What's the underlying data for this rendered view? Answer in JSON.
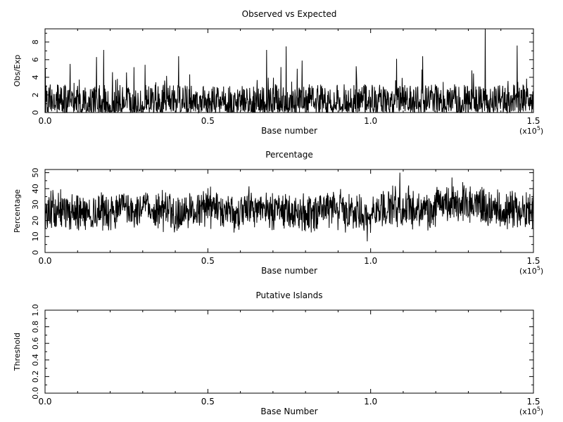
{
  "chart_data": [
    {
      "type": "line",
      "title": "Observed vs Expected",
      "xlabel": "Base number",
      "ylabel": "Obs/Exp",
      "x_multiplier_base": "(x10",
      "x_multiplier_exp": "5",
      "x_multiplier_close": ")",
      "xlim": [
        0,
        150000
      ],
      "ylim": [
        0,
        9.5
      ],
      "x_ticks": [
        0,
        50000,
        100000,
        150000
      ],
      "x_tick_labels": [
        "0.0",
        "0.5",
        "1.0",
        "1.5"
      ],
      "y_ticks": [
        0,
        2,
        4,
        6,
        8
      ],
      "y_tick_labels": [
        "0",
        "2",
        "4",
        "6",
        "8"
      ],
      "series": [
        {
          "description": "dense noisy trace, baseline mostly 0-3 with spikes",
          "color": "#000000",
          "generator": {
            "n": 1500,
            "kind": "obsexp",
            "seed": 7
          },
          "peaks": [
            [
              15800,
              6.3
            ],
            [
              18000,
              7.1
            ],
            [
              41000,
              6.4
            ],
            [
              68000,
              7.1
            ],
            [
              74000,
              7.5
            ],
            [
              79000,
              5.9
            ],
            [
              108000,
              6.1
            ],
            [
              116000,
              6.4
            ],
            [
              135200,
              9.5
            ],
            [
              145000,
              7.6
            ]
          ]
        }
      ]
    },
    {
      "type": "line",
      "title": "Percentage",
      "xlabel": "Base number",
      "ylabel": "Percentage",
      "x_multiplier_base": "(x10",
      "x_multiplier_exp": "5",
      "x_multiplier_close": ")",
      "xlim": [
        0,
        150000
      ],
      "ylim": [
        0,
        52
      ],
      "x_ticks": [
        0,
        50000,
        100000,
        150000
      ],
      "x_tick_labels": [
        "0.0",
        "0.5",
        "1.0",
        "1.5"
      ],
      "y_ticks": [
        0,
        10,
        20,
        30,
        40,
        50
      ],
      "y_tick_labels": [
        "0",
        "10",
        "20",
        "30",
        "40",
        "50"
      ],
      "series": [
        {
          "description": "noisy trace around 26%, range roughly 10-50",
          "color": "#000000",
          "generator": {
            "n": 1500,
            "kind": "percentage",
            "seed": 13
          },
          "peaks": [
            [
              109000,
              50
            ],
            [
              125000,
              47
            ],
            [
              99000,
              7
            ],
            [
              150000,
              45
            ]
          ]
        }
      ]
    },
    {
      "type": "line",
      "title": "Putative Islands",
      "xlabel": "Base Number",
      "ylabel": "Threshold",
      "x_multiplier_base": "(x10",
      "x_multiplier_exp": "5",
      "x_multiplier_close": ")",
      "xlim": [
        0,
        150000
      ],
      "ylim": [
        0,
        1.0
      ],
      "x_ticks": [
        0,
        50000,
        100000,
        150000
      ],
      "x_tick_labels": [
        "0.0",
        "0.5",
        "1.0",
        "1.5"
      ],
      "y_ticks": [
        0,
        0.2,
        0.4,
        0.6,
        0.8,
        1.0
      ],
      "y_tick_labels": [
        "0.0",
        "0.2",
        "0.4",
        "0.6",
        "0.8",
        "1.0"
      ],
      "series": []
    }
  ]
}
